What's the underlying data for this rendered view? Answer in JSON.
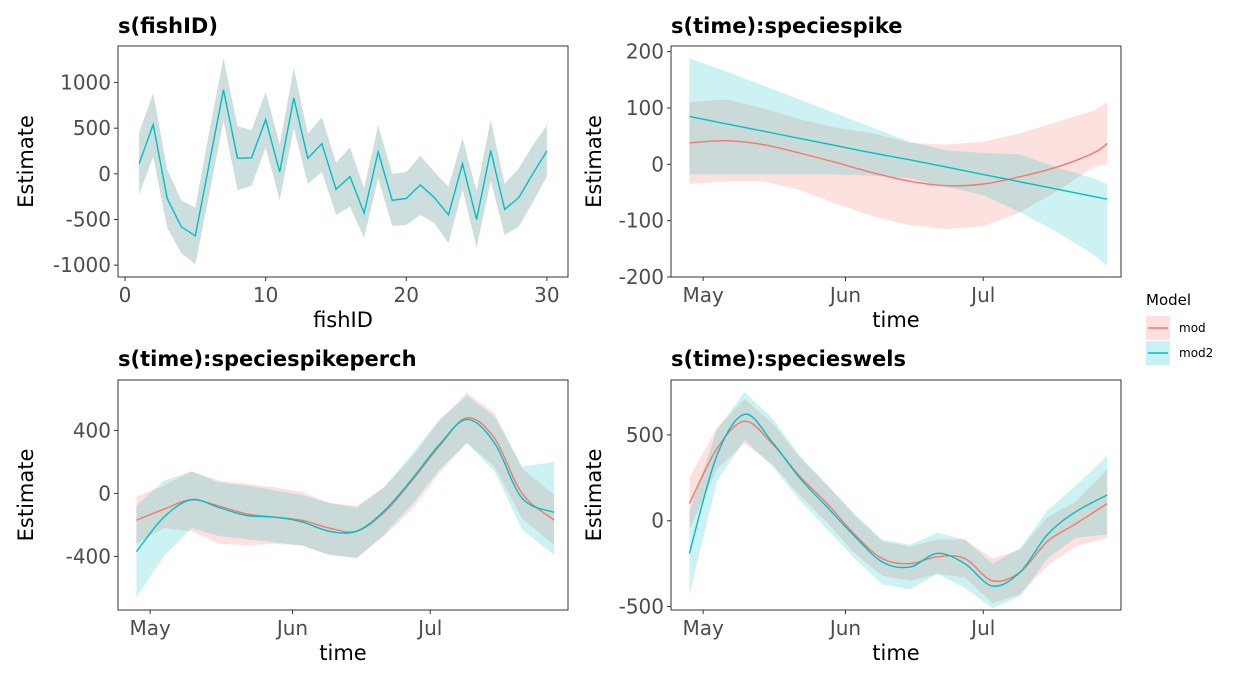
{
  "colors": {
    "mod": "#F8766D",
    "mod2": "#00BFC4",
    "mod_band": "#FFE0DE",
    "mod2_band": "#C9F0F2",
    "overlap_band": "#CCDEDD"
  },
  "legend": {
    "title": "Model",
    "placement": "right",
    "items": [
      {
        "label": "mod",
        "color": "#F8766D"
      },
      {
        "label": "mod2",
        "color": "#00BFC4"
      }
    ]
  },
  "chart_data": [
    {
      "type": "line",
      "title": "s(fishID)",
      "xlabel": "fishID",
      "ylabel": "Estimate",
      "xlim": [
        -0.5,
        31.5
      ],
      "ylim": [
        -1130,
        1400
      ],
      "xticks": [
        {
          "v": 0,
          "label": "0"
        },
        {
          "v": 10,
          "label": "10"
        },
        {
          "v": 20,
          "label": "20"
        },
        {
          "v": 30,
          "label": "30"
        }
      ],
      "yticks": [
        {
          "v": -1000,
          "label": "-1000"
        },
        {
          "v": -500,
          "label": "-500"
        },
        {
          "v": 0,
          "label": "0"
        },
        {
          "v": 500,
          "label": "500"
        },
        {
          "v": 1000,
          "label": "1000"
        }
      ],
      "x": [
        1,
        2,
        3,
        4,
        5,
        6,
        7,
        8,
        9,
        10,
        11,
        12,
        13,
        14,
        15,
        16,
        17,
        18,
        19,
        20,
        21,
        22,
        23,
        24,
        25,
        26,
        27,
        28,
        29,
        30
      ],
      "series": [
        {
          "model": "mod",
          "values": [
            110,
            540,
            -270,
            -580,
            -680,
            120,
            920,
            170,
            175,
            595,
            20,
            830,
            170,
            330,
            -170,
            -30,
            -430,
            240,
            -290,
            -270,
            -120,
            -260,
            -450,
            110,
            -500,
            255,
            -390,
            -260,
            0,
            250
          ],
          "lower": [
            -230,
            190,
            -590,
            -870,
            -990,
            -220,
            580,
            -180,
            -130,
            290,
            -290,
            500,
            -110,
            20,
            -450,
            -360,
            -700,
            -50,
            -570,
            -560,
            -450,
            -540,
            -760,
            -170,
            -810,
            -80,
            -670,
            -580,
            -310,
            -30
          ],
          "upper": [
            450,
            880,
            50,
            -290,
            -370,
            470,
            1270,
            520,
            480,
            900,
            320,
            1160,
            440,
            620,
            120,
            290,
            -160,
            530,
            0,
            20,
            200,
            20,
            -140,
            390,
            -190,
            590,
            -110,
            60,
            310,
            530
          ]
        },
        {
          "model": "mod2",
          "values": [
            110,
            540,
            -270,
            -580,
            -680,
            120,
            920,
            170,
            175,
            595,
            20,
            830,
            170,
            330,
            -170,
            -30,
            -430,
            240,
            -290,
            -270,
            -120,
            -260,
            -450,
            110,
            -500,
            255,
            -390,
            -260,
            0,
            250
          ],
          "lower": [
            -230,
            190,
            -590,
            -870,
            -990,
            -220,
            580,
            -180,
            -130,
            290,
            -290,
            500,
            -110,
            20,
            -450,
            -360,
            -700,
            -50,
            -570,
            -560,
            -450,
            -540,
            -760,
            -170,
            -810,
            -80,
            -670,
            -580,
            -310,
            -30
          ],
          "upper": [
            450,
            880,
            50,
            -290,
            -370,
            470,
            1270,
            520,
            480,
            900,
            320,
            1160,
            440,
            620,
            120,
            290,
            -160,
            530,
            0,
            20,
            200,
            20,
            -140,
            390,
            -190,
            590,
            -110,
            60,
            310,
            530
          ]
        }
      ]
    },
    {
      "type": "line",
      "title": "s(time):speciespike",
      "xlabel": "time",
      "ylabel": "Estimate",
      "xlim": [
        "2023-04-24",
        "2023-07-31"
      ],
      "ylim": [
        -200,
        210
      ],
      "xticks": [
        {
          "v": "2023-05-01",
          "label": "May"
        },
        {
          "v": "2023-06-01",
          "label": "Jun"
        },
        {
          "v": "2023-07-01",
          "label": "Jul"
        }
      ],
      "yticks": [
        {
          "v": -200,
          "label": "-200"
        },
        {
          "v": -100,
          "label": "-100"
        },
        {
          "v": 0,
          "label": "0"
        },
        {
          "v": 100,
          "label": "100"
        },
        {
          "v": 200,
          "label": "200"
        }
      ],
      "x": [
        "2023-04-28",
        "2023-05-06",
        "2023-05-14",
        "2023-05-22",
        "2023-05-30",
        "2023-06-07",
        "2023-06-15",
        "2023-06-23",
        "2023-07-01",
        "2023-07-09",
        "2023-07-17",
        "2023-07-25",
        "2023-07-28"
      ],
      "series": [
        {
          "model": "mod",
          "values": [
            38,
            42,
            35,
            20,
            3,
            -15,
            -30,
            -38,
            -35,
            -22,
            -5,
            20,
            37
          ],
          "lower": [
            -35,
            -30,
            -30,
            -45,
            -70,
            -92,
            -108,
            -115,
            -110,
            -85,
            -48,
            -5,
            0
          ],
          "upper": [
            110,
            115,
            100,
            80,
            65,
            55,
            38,
            35,
            40,
            55,
            75,
            95,
            110
          ]
        },
        {
          "model": "mod2",
          "values": [
            85,
            72,
            59,
            46,
            33,
            20,
            8,
            -5,
            -18,
            -31,
            -44,
            -57,
            -62
          ],
          "lower": [
            -18,
            -18,
            -18,
            -18,
            -18,
            -20,
            -25,
            -40,
            -55,
            -85,
            -120,
            -160,
            -180
          ],
          "upper": [
            188,
            165,
            140,
            115,
            90,
            65,
            40,
            25,
            20,
            18,
            -5,
            -25,
            -35
          ]
        }
      ]
    },
    {
      "type": "line",
      "title": "s(time):speciespikeperch",
      "xlabel": "time",
      "ylabel": "Estimate",
      "xlim": [
        "2023-04-24",
        "2023-07-31"
      ],
      "ylim": [
        -740,
        720
      ],
      "xticks": [
        {
          "v": "2023-05-01",
          "label": "May"
        },
        {
          "v": "2023-06-01",
          "label": "Jun"
        },
        {
          "v": "2023-07-01",
          "label": "Jul"
        }
      ],
      "yticks": [
        {
          "v": -400,
          "label": "-400"
        },
        {
          "v": 0,
          "label": "0"
        },
        {
          "v": 400,
          "label": "400"
        }
      ],
      "x": [
        "2023-04-28",
        "2023-05-04",
        "2023-05-10",
        "2023-05-16",
        "2023-05-22",
        "2023-05-28",
        "2023-06-03",
        "2023-06-09",
        "2023-06-15",
        "2023-06-21",
        "2023-06-27",
        "2023-07-03",
        "2023-07-09",
        "2023-07-15",
        "2023-07-21",
        "2023-07-28"
      ],
      "series": [
        {
          "model": "mod",
          "values": [
            -170,
            -100,
            -40,
            -80,
            -130,
            -150,
            -170,
            -220,
            -240,
            -120,
            80,
            300,
            480,
            350,
            0,
            -170
          ],
          "lower": [
            -320,
            -220,
            -240,
            -320,
            -330,
            -320,
            -330,
            -390,
            -410,
            -270,
            -100,
            130,
            320,
            170,
            -160,
            -330
          ],
          "upper": [
            -20,
            50,
            140,
            80,
            60,
            40,
            10,
            -60,
            -80,
            40,
            230,
            460,
            640,
            510,
            160,
            -10
          ]
        },
        {
          "model": "mod2",
          "values": [
            -370,
            -150,
            -40,
            -90,
            -140,
            -150,
            -180,
            -240,
            -240,
            -110,
            90,
            310,
            470,
            320,
            -30,
            -120
          ],
          "lower": [
            -660,
            -400,
            -220,
            -270,
            -290,
            -310,
            -330,
            -390,
            -410,
            -260,
            -70,
            150,
            320,
            140,
            -230,
            -390
          ],
          "upper": [
            -80,
            80,
            140,
            70,
            50,
            20,
            -10,
            -60,
            -90,
            40,
            250,
            470,
            620,
            490,
            170,
            200
          ]
        }
      ]
    },
    {
      "type": "line",
      "title": "s(time):specieswels",
      "xlabel": "time",
      "ylabel": "Estimate",
      "xlim": [
        "2023-04-24",
        "2023-07-31"
      ],
      "ylim": [
        -520,
        820
      ],
      "xticks": [
        {
          "v": "2023-05-01",
          "label": "May"
        },
        {
          "v": "2023-06-01",
          "label": "Jun"
        },
        {
          "v": "2023-07-01",
          "label": "Jul"
        }
      ],
      "yticks": [
        {
          "v": -500,
          "label": "-500"
        },
        {
          "v": 0,
          "label": "0"
        },
        {
          "v": 500,
          "label": "500"
        }
      ],
      "x": [
        "2023-04-28",
        "2023-05-04",
        "2023-05-10",
        "2023-05-16",
        "2023-05-22",
        "2023-05-28",
        "2023-06-03",
        "2023-06-09",
        "2023-06-15",
        "2023-06-21",
        "2023-06-27",
        "2023-07-03",
        "2023-07-09",
        "2023-07-15",
        "2023-07-21",
        "2023-07-28"
      ],
      "series": [
        {
          "model": "mod",
          "values": [
            100,
            420,
            580,
            450,
            260,
            100,
            -80,
            -220,
            -250,
            -210,
            -220,
            -350,
            -300,
            -120,
            -20,
            100
          ],
          "lower": [
            -50,
            300,
            450,
            330,
            150,
            -10,
            -190,
            -320,
            -350,
            -310,
            -330,
            -480,
            -430,
            -260,
            -150,
            -100
          ],
          "upper": [
            250,
            540,
            710,
            570,
            370,
            210,
            30,
            -120,
            -150,
            -110,
            -110,
            -220,
            -170,
            20,
            110,
            300
          ]
        },
        {
          "model": "mod2",
          "values": [
            -190,
            380,
            620,
            460,
            250,
            80,
            -90,
            -240,
            -270,
            -190,
            -250,
            -380,
            -300,
            -80,
            50,
            150
          ],
          "lower": [
            -430,
            230,
            470,
            320,
            120,
            -50,
            -220,
            -370,
            -400,
            -310,
            -390,
            -510,
            -440,
            -220,
            -100,
            -80
          ],
          "upper": [
            50,
            530,
            750,
            600,
            380,
            210,
            40,
            -110,
            -140,
            -70,
            -110,
            -250,
            -160,
            60,
            200,
            380
          ]
        }
      ]
    }
  ]
}
